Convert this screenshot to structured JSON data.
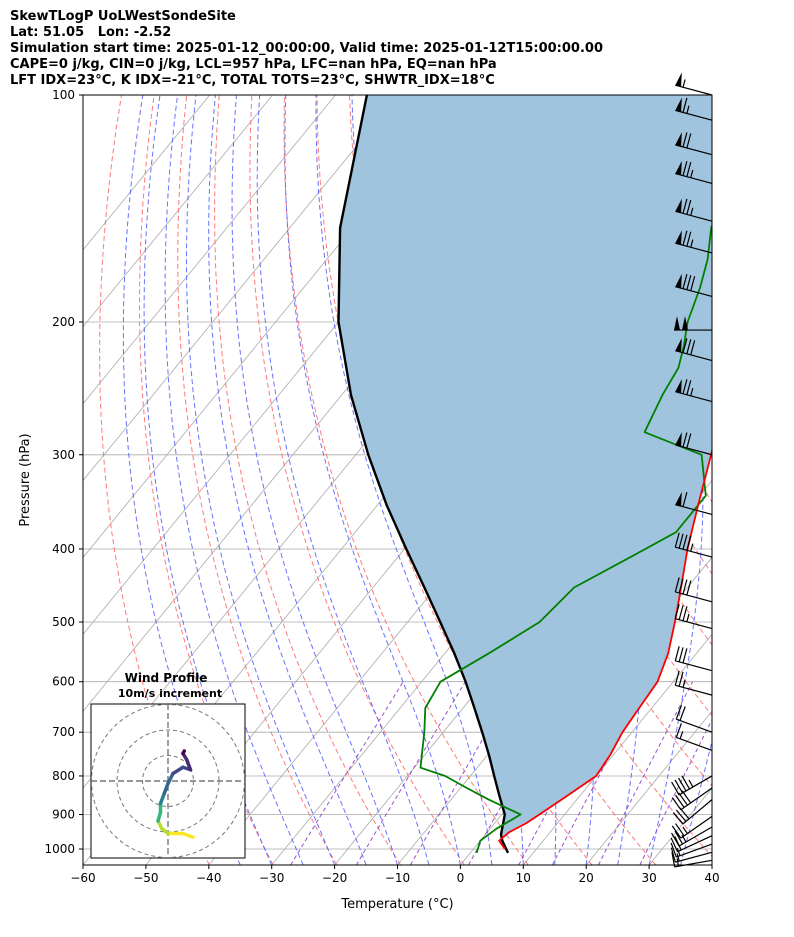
{
  "header": {
    "title": "SkewTLogP UoLWestSondeSite",
    "location": "Lat: 51.05   Lon: -2.52",
    "times": "Simulation start time: 2025-01-12_00:00:00, Valid time: 2025-01-12T15:00:00.00",
    "indices1": "CAPE=0 j/kg, CIN=0 j/kg, LCL=957 hPa, LFC=nan hPa, EQ=nan hPa",
    "indices2": "LFT IDX=23°C, K IDX=-21°C, TOTAL TOTS=23°C, SHWTR_IDX=18°C"
  },
  "chart_data": {
    "type": "line",
    "title": "SkewTLogP UoLWestSondeSite",
    "xlabel": "Temperature (°C)",
    "ylabel": "Pressure (hPa)",
    "xlim": [
      -60,
      40
    ],
    "ylim": [
      1050,
      100
    ],
    "y_scale": "log",
    "skew": true,
    "grid": true,
    "x_ticks": [
      "−60",
      "−50",
      "−40",
      "−30",
      "−20",
      "−10",
      "0",
      "10",
      "20",
      "30",
      "40"
    ],
    "y_ticks": [
      "100",
      "200",
      "300",
      "400",
      "500",
      "600",
      "700",
      "800",
      "900",
      "1000"
    ],
    "x_tick_values": [
      -60,
      -50,
      -40,
      -30,
      -20,
      -10,
      0,
      10,
      20,
      30,
      40
    ],
    "y_tick_values": [
      100,
      200,
      300,
      400,
      500,
      600,
      700,
      800,
      900,
      1000
    ],
    "colors": {
      "temperature": "#ff0000",
      "dewpoint": "#008000",
      "parcel": "#000000",
      "shade": "#a0c4de",
      "dry_adiabats": "#ff6b6b",
      "moist_adiabats": "#4b5bff",
      "mixing_ratio": "#9a4fd0",
      "isotherms": "#aaaaaa"
    },
    "series": [
      {
        "key": "temperature",
        "points": [
          [
            1000,
            5
          ],
          [
            975,
            3
          ],
          [
            950,
            3.5
          ],
          [
            925,
            5
          ],
          [
            900,
            6
          ],
          [
            850,
            8
          ],
          [
            800,
            10
          ],
          [
            750,
            9.5
          ],
          [
            700,
            8.5
          ],
          [
            650,
            8
          ],
          [
            600,
            7.5
          ],
          [
            550,
            5.5
          ],
          [
            500,
            2.5
          ],
          [
            450,
            -1
          ],
          [
            400,
            -5
          ],
          [
            350,
            -9
          ],
          [
            300,
            -13.5
          ],
          [
            250,
            -19
          ],
          [
            200,
            -27
          ],
          [
            180,
            -31
          ],
          [
            165,
            -31
          ],
          [
            155,
            -29
          ],
          [
            150,
            -31
          ],
          [
            140,
            -33
          ],
          [
            130,
            -33
          ],
          [
            125,
            -34
          ],
          [
            110,
            -33
          ],
          [
            100,
            -33
          ]
        ]
      },
      {
        "key": "dewpoint",
        "points": [
          [
            1012,
            1
          ],
          [
            975,
            0
          ],
          [
            940,
            1
          ],
          [
            900,
            3
          ],
          [
            860,
            -4
          ],
          [
            830,
            -9
          ],
          [
            800,
            -14
          ],
          [
            780,
            -19
          ],
          [
            700,
            -23
          ],
          [
            650,
            -26
          ],
          [
            600,
            -27
          ],
          [
            550,
            -23
          ],
          [
            500,
            -19
          ],
          [
            450,
            -18
          ],
          [
            410,
            -13
          ],
          [
            380,
            -9
          ],
          [
            340,
            -9
          ],
          [
            300,
            -15
          ],
          [
            280,
            -27
          ],
          [
            250,
            -29
          ],
          [
            230,
            -30
          ],
          [
            215,
            -32
          ],
          [
            200,
            -34.5
          ],
          [
            180,
            -37
          ],
          [
            165,
            -39.5
          ],
          [
            150,
            -43
          ],
          [
            135,
            -45
          ],
          [
            120,
            -45
          ],
          [
            110,
            -48
          ],
          [
            100,
            -49
          ]
        ]
      },
      {
        "key": "parcel",
        "points": [
          [
            1012,
            6
          ],
          [
            975,
            3.5
          ],
          [
            957,
            2.5
          ],
          [
            900,
            0.5
          ],
          [
            850,
            -2.8
          ],
          [
            800,
            -6.2
          ],
          [
            750,
            -9.8
          ],
          [
            700,
            -13.8
          ],
          [
            650,
            -18.2
          ],
          [
            600,
            -23
          ],
          [
            550,
            -28.5
          ],
          [
            500,
            -34.8
          ],
          [
            450,
            -41.8
          ],
          [
            400,
            -49.7
          ],
          [
            350,
            -58.5
          ],
          [
            300,
            -68
          ],
          [
            250,
            -78.5
          ],
          [
            200,
            -90
          ],
          [
            150,
            -102
          ],
          [
            100,
            -115
          ]
        ]
      }
    ],
    "wind_barbs": {
      "pressures": [
        1035,
        1010,
        985,
        960,
        935,
        905,
        860,
        830,
        800,
        740,
        700,
        625,
        580,
        510,
        470,
        410,
        360,
        300,
        255,
        225,
        205,
        185,
        162,
        147,
        131,
        120,
        108,
        100
      ],
      "speed_kt": [
        15,
        15,
        15,
        20,
        25,
        25,
        30,
        40,
        45,
        15,
        20,
        25,
        30,
        35,
        40,
        45,
        60,
        70,
        75,
        80,
        100,
        80,
        75,
        75,
        75,
        70,
        65,
        55
      ],
      "direction_deg": [
        260,
        255,
        250,
        245,
        240,
        235,
        230,
        235,
        240,
        290,
        290,
        285,
        285,
        285,
        285,
        285,
        285,
        285,
        285,
        285,
        270,
        285,
        285,
        285,
        285,
        285,
        285,
        285
      ]
    }
  },
  "inset": {
    "title": "Wind Profile",
    "subtitle": "10m/s increment",
    "hodograph": [
      [
        2,
        -4.5
      ],
      [
        1.2,
        -4.2
      ],
      [
        0,
        -4.2
      ],
      [
        -0.5,
        -3.8
      ],
      [
        -0.8,
        -3.2
      ],
      [
        -0.6,
        -2.5
      ],
      [
        -0.6,
        -1.8
      ],
      [
        -0.3,
        -1
      ],
      [
        0,
        -0.2
      ],
      [
        0.4,
        0.6
      ],
      [
        1.2,
        1.1
      ],
      [
        1.8,
        0.9
      ],
      [
        1.5,
        1.7
      ],
      [
        1.2,
        2.2
      ],
      [
        1.3,
        2.4
      ]
    ]
  }
}
